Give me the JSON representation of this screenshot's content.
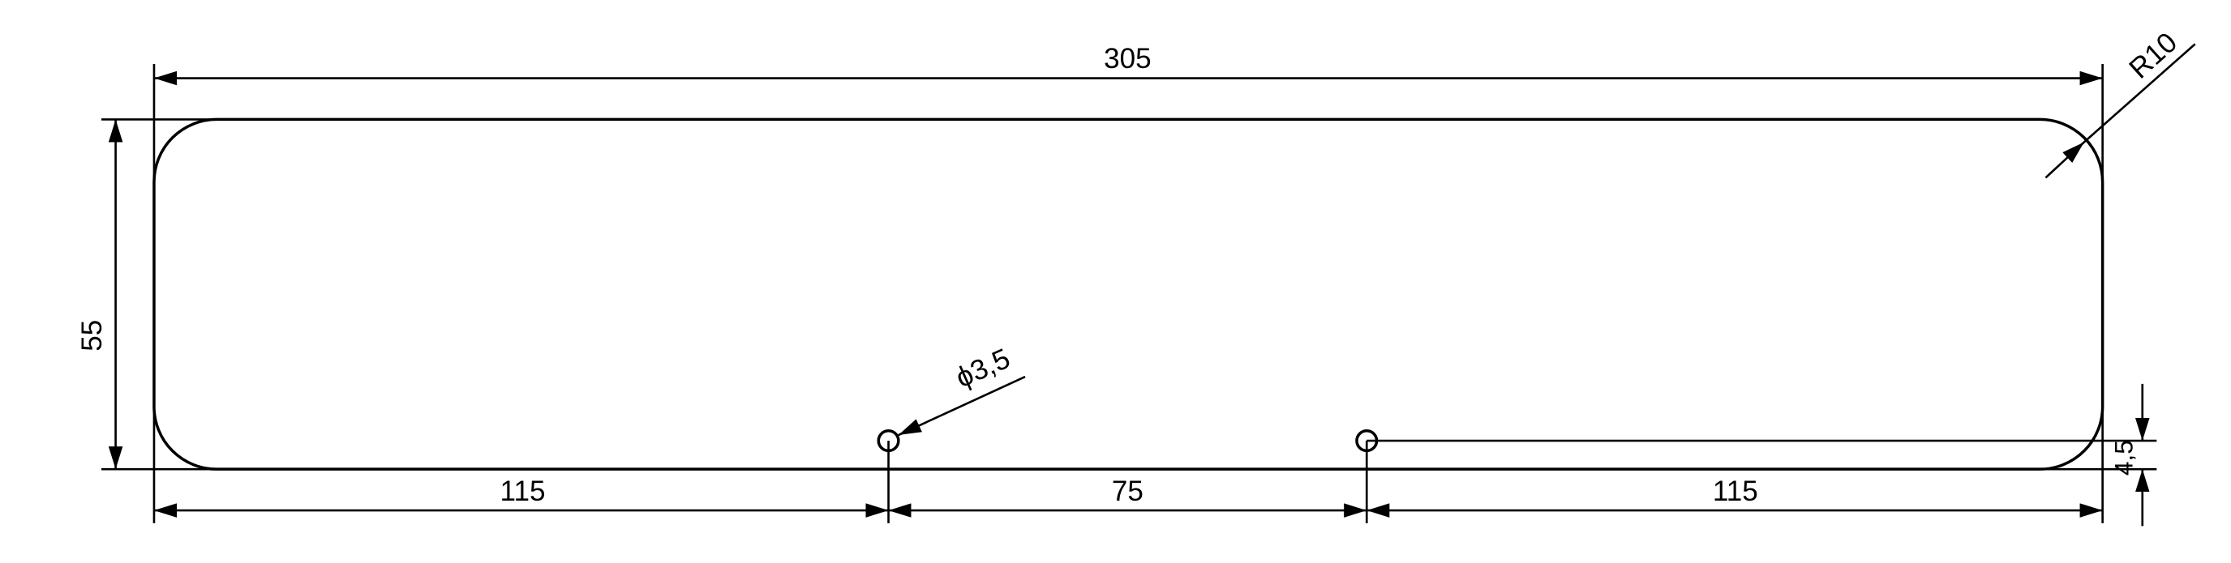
{
  "drawing": {
    "dimensions": {
      "overall_width": "305",
      "height": "55",
      "corner_radius": "R10",
      "hole_diameter": "ϕ3,5",
      "left_offset": "115",
      "hole_spacing": "75",
      "right_offset": "115",
      "hole_edge_offset": "4,5"
    },
    "colors": {
      "line": "#000000",
      "background": "#ffffff"
    }
  }
}
